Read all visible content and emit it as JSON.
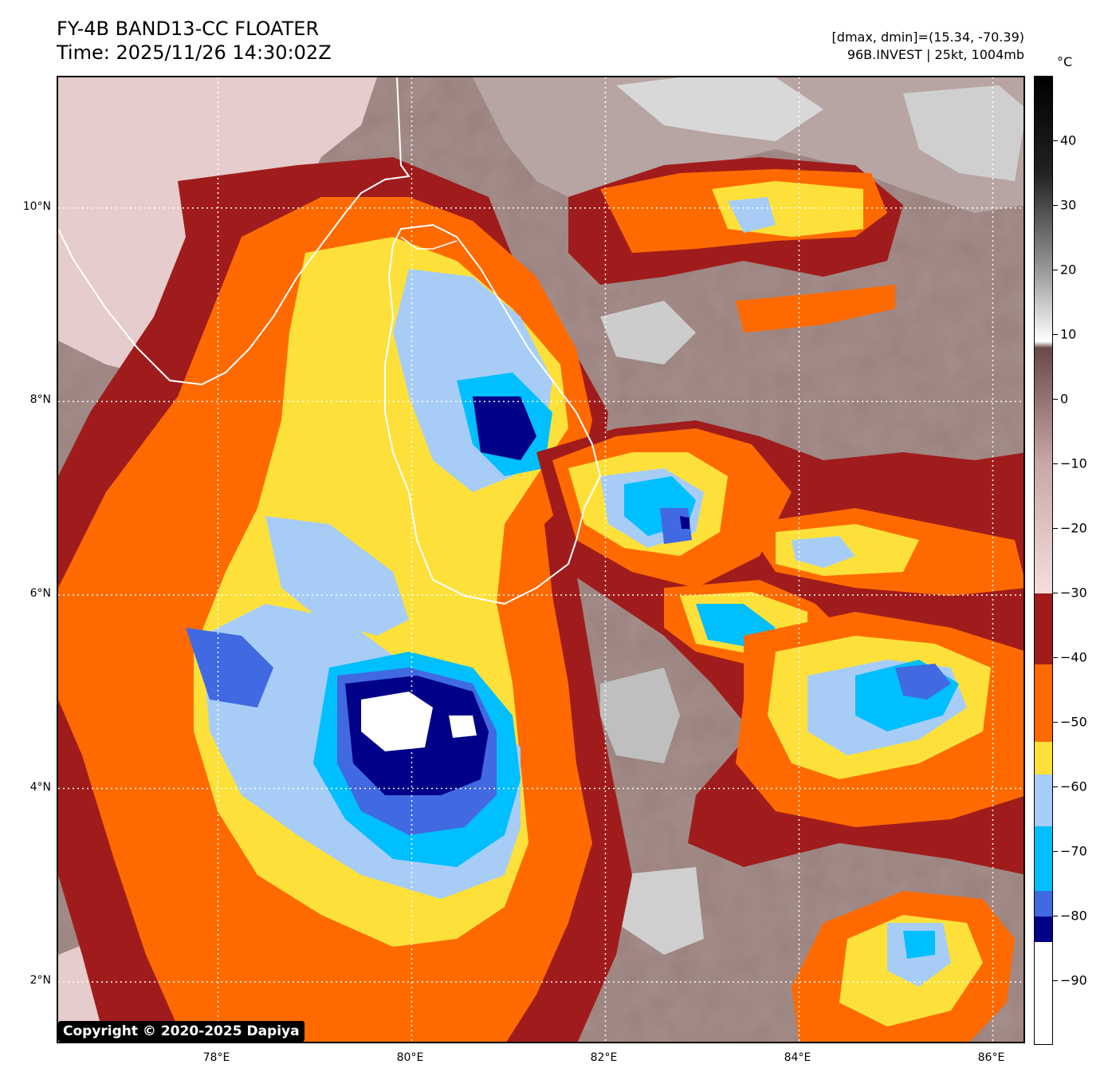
{
  "header": {
    "title_line1": "FY-4B BAND13-CC FLOATER",
    "title_line2": "Time: 2025/11/26 14:30:02Z",
    "info_line1": "[dmax, dmin]=(15.34, -70.39)",
    "info_line2": "96B.INVEST | 25kt, 1004mb"
  },
  "map": {
    "lat_ticks": [
      "10°N",
      "8°N",
      "6°N",
      "4°N",
      "2°N"
    ],
    "lon_ticks": [
      "78°E",
      "80°E",
      "82°E",
      "84°E",
      "86°E"
    ],
    "lat_values": [
      10,
      8,
      6,
      4,
      2
    ],
    "lon_values": [
      78,
      80,
      82,
      84,
      86
    ],
    "extent": {
      "lon_min": 76.35,
      "lon_max": 86.35,
      "lat_min": 1.35,
      "lat_max": 11.35
    },
    "gridlines": true,
    "coastline_color": "#ffffff"
  },
  "colorbar": {
    "unit": "°C",
    "tick_labels": [
      "40",
      "30",
      "20",
      "10",
      "0",
      "−10",
      "−20",
      "−30",
      "−40",
      "−50",
      "−60",
      "−70",
      "−80",
      "−90"
    ],
    "tick_values": [
      40,
      30,
      20,
      10,
      0,
      -10,
      -20,
      -30,
      -40,
      -50,
      -60,
      -70,
      -80,
      -90
    ],
    "range": [
      -100,
      50
    ],
    "bands": [
      {
        "from": -100,
        "to": -84,
        "color": "#ffffff"
      },
      {
        "from": -84,
        "to": -80,
        "color": "#000088"
      },
      {
        "from": -80,
        "to": -76,
        "color": "#4169e1"
      },
      {
        "from": -76,
        "to": -66,
        "color": "#00bfff"
      },
      {
        "from": -66,
        "to": -58,
        "color": "#a7cdf7"
      },
      {
        "from": -58,
        "to": -53,
        "color": "#fde13a"
      },
      {
        "from": -53,
        "to": -41,
        "color": "#ff6a00"
      },
      {
        "from": -41,
        "to": -30,
        "color": "#a01c1c"
      }
    ],
    "gradient": [
      {
        "value": -30,
        "color": "#f4dede"
      },
      {
        "value": -10,
        "color": "#c8a8a8"
      },
      {
        "value": 8,
        "color": "#6a4a48"
      },
      {
        "value": 9,
        "color": "#ffffff"
      },
      {
        "value": 20,
        "color": "#999999"
      },
      {
        "value": 35,
        "color": "#222222"
      },
      {
        "value": 50,
        "color": "#000000"
      }
    ]
  },
  "copyright": "Copyright © 2020-2025 Dapiya"
}
